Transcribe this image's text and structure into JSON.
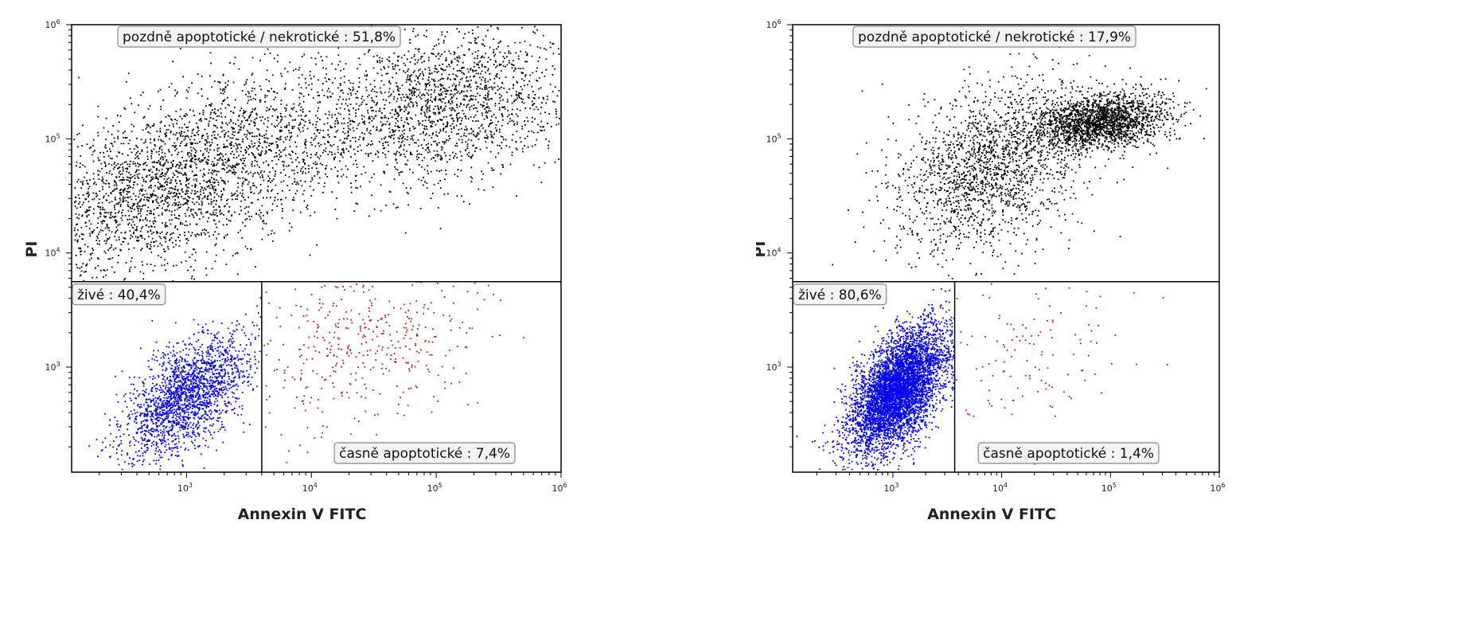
{
  "chart_data": [
    {
      "type": "scatter",
      "xlabel": "Annexin V FITC",
      "ylabel": "PI",
      "scale": "log",
      "xlim": [
        120,
        1000000
      ],
      "ylim": [
        120,
        1000000
      ],
      "x_ticks": [
        {
          "value": 1000,
          "base": "10",
          "exp": "3"
        },
        {
          "value": 10000,
          "base": "10",
          "exp": "4"
        },
        {
          "value": 100000,
          "base": "10",
          "exp": "5"
        },
        {
          "value": 1000000,
          "base": "10",
          "exp": "6"
        }
      ],
      "y_ticks": [
        {
          "value": 1000,
          "base": "10",
          "exp": "3"
        },
        {
          "value": 10000,
          "base": "10",
          "exp": "4"
        },
        {
          "value": 100000,
          "base": "10",
          "exp": "5"
        },
        {
          "value": 1000000,
          "base": "10",
          "exp": "6"
        }
      ],
      "gate_x": 4000,
      "gate_y": 5600,
      "quadrants": {
        "late_apoptotic_necrotic": {
          "label": "pozdně apoptotické / nekrotické : 51,8%",
          "percent": 51.8,
          "color": "#000000"
        },
        "live": {
          "label": "živé : 40,4%",
          "percent": 40.4,
          "color": "#0000ee"
        },
        "early_apoptotic": {
          "label": "časně apoptotické : 7,4%",
          "percent": 7.4,
          "color": "#b01c1c"
        }
      },
      "populations": [
        {
          "quadrant": "late_apoptotic_necrotic",
          "count": 2600,
          "center": [
            2.95,
            4.65
          ],
          "spread": [
            0.75,
            0.45
          ],
          "corr": 0.6
        },
        {
          "quadrant": "late_apoptotic_necrotic",
          "count": 1700,
          "center": [
            5.05,
            5.3
          ],
          "spread": [
            0.55,
            0.35
          ],
          "corr": 0.3
        },
        {
          "quadrant": "live",
          "count": 2000,
          "center": [
            3.0,
            2.75
          ],
          "spread": [
            0.25,
            0.27
          ],
          "corr": 0.6
        },
        {
          "quadrant": "early_apoptotic",
          "count": 400,
          "center": [
            4.4,
            3.15
          ],
          "spread": [
            0.5,
            0.35
          ],
          "corr": 0.2
        }
      ]
    },
    {
      "type": "scatter",
      "xlabel": "Annexin V FITC",
      "ylabel": "PI",
      "scale": "log",
      "xlim": [
        120,
        1000000
      ],
      "ylim": [
        120,
        1000000
      ],
      "x_ticks": [
        {
          "value": 1000,
          "base": "10",
          "exp": "3"
        },
        {
          "value": 10000,
          "base": "10",
          "exp": "4"
        },
        {
          "value": 100000,
          "base": "10",
          "exp": "5"
        },
        {
          "value": 1000000,
          "base": "10",
          "exp": "6"
        }
      ],
      "y_ticks": [
        {
          "value": 1000,
          "base": "10",
          "exp": "3"
        },
        {
          "value": 10000,
          "base": "10",
          "exp": "4"
        },
        {
          "value": 100000,
          "base": "10",
          "exp": "5"
        },
        {
          "value": 1000000,
          "base": "10",
          "exp": "6"
        }
      ],
      "gate_x": 3700,
      "gate_y": 5600,
      "quadrants": {
        "late_apoptotic_necrotic": {
          "label": "pozdně apoptotické / nekrotické : 17,9%",
          "percent": 17.9,
          "color": "#000000"
        },
        "live": {
          "label": "živé : 80,6%",
          "percent": 80.6,
          "color": "#0000ee"
        },
        "early_apoptotic": {
          "label": "časně apoptotické : 1,4%",
          "percent": 1.4,
          "color": "#b01c1c"
        }
      },
      "populations": [
        {
          "quadrant": "late_apoptotic_necrotic",
          "count": 1800,
          "center": [
            3.9,
            4.75
          ],
          "spread": [
            0.45,
            0.38
          ],
          "corr": 0.35
        },
        {
          "quadrant": "late_apoptotic_necrotic",
          "count": 2000,
          "center": [
            4.9,
            5.15
          ],
          "spread": [
            0.3,
            0.12
          ],
          "corr": 0.2
        },
        {
          "quadrant": "live",
          "count": 5200,
          "center": [
            3.05,
            2.8
          ],
          "spread": [
            0.22,
            0.27
          ],
          "corr": 0.55
        },
        {
          "quadrant": "early_apoptotic",
          "count": 120,
          "center": [
            4.2,
            3.15
          ],
          "spread": [
            0.5,
            0.35
          ],
          "corr": 0.1
        }
      ]
    }
  ]
}
